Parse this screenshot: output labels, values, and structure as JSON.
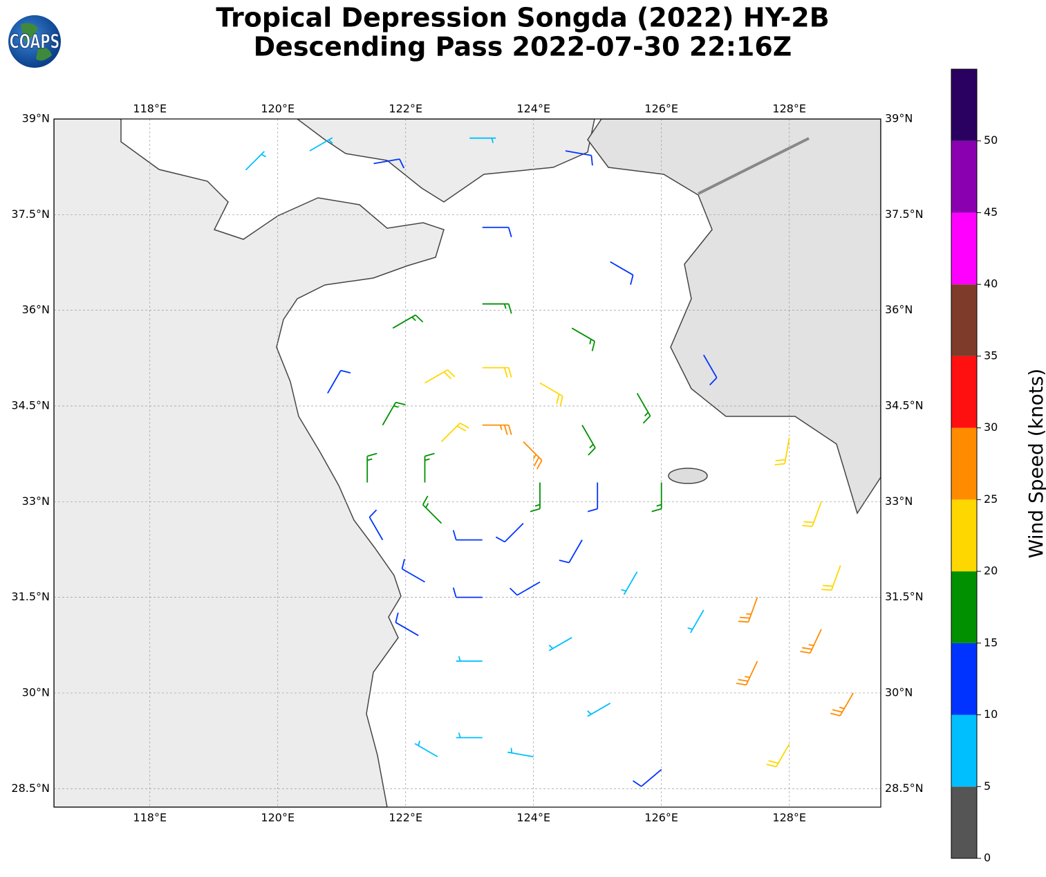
{
  "chart_data": {
    "type": "wind-barbs",
    "title": "Tropical Depression Songda (2022) HY-2B",
    "subtitle": "Descending Pass 2022-07-30 22:16Z",
    "logo": "COAPS",
    "xlim": [
      116.5,
      129.43
    ],
    "ylim": [
      28.21,
      39
    ],
    "xticks": [
      {
        "value": 118,
        "label": "118°E"
      },
      {
        "value": 120,
        "label": "120°E"
      },
      {
        "value": 122,
        "label": "122°E"
      },
      {
        "value": 124,
        "label": "124°E"
      },
      {
        "value": 126,
        "label": "126°E"
      },
      {
        "value": 128,
        "label": "128°E"
      }
    ],
    "yticks": [
      {
        "value": 28.5,
        "label": "28.5°N"
      },
      {
        "value": 30,
        "label": "30°N"
      },
      {
        "value": 31.5,
        "label": "31.5°N"
      },
      {
        "value": 33,
        "label": "33°N"
      },
      {
        "value": 34.5,
        "label": "34.5°N"
      },
      {
        "value": 36,
        "label": "36°N"
      },
      {
        "value": 37.5,
        "label": "37.5°N"
      },
      {
        "value": 39,
        "label": "39°N"
      }
    ],
    "grid": true,
    "barbs": {
      "lon": [
        124.1,
        123.84,
        123.2,
        122.56,
        122.3,
        122.56,
        123.2,
        123.84,
        125,
        124.76,
        124.1,
        123.2,
        122.3,
        121.64,
        121.4,
        121.64,
        122.3,
        123.2,
        124.1,
        124.76,
        126,
        125.62,
        124.6,
        123.2,
        121.8,
        120.78,
        122.2,
        123.2,
        124.6,
        125.62,
        125.2,
        123.2,
        126.66,
        123.2,
        125.2,
        126.66,
        120.5,
        121.5,
        123,
        124.5,
        119.5,
        127.5,
        128.5,
        129,
        128,
        128.5,
        128,
        127.5,
        128.8,
        122.5,
        124,
        126
      ],
      "lat": [
        33.3,
        33.94,
        34.2,
        33.94,
        33.3,
        32.66,
        32.4,
        32.66,
        33.3,
        34.2,
        34.86,
        35.1,
        34.86,
        34.2,
        33.3,
        32.4,
        31.74,
        31.5,
        31.74,
        32.4,
        33.3,
        34.7,
        35.72,
        36.1,
        35.72,
        34.7,
        30.9,
        30.5,
        30.87,
        31.9,
        36.76,
        37.3,
        35.3,
        29.3,
        29.84,
        31.3,
        38.5,
        38.3,
        38.7,
        38.5,
        38.2,
        31.5,
        31,
        30,
        29.2,
        33,
        34,
        30.5,
        32,
        29,
        29,
        28.8
      ],
      "speed": [
        18,
        27,
        25,
        22,
        17,
        16,
        13,
        12,
        14,
        18,
        22,
        23,
        21,
        18,
        17,
        13,
        11,
        11,
        11,
        12,
        16,
        18,
        17,
        16,
        17,
        13,
        12,
        8,
        8,
        9,
        12,
        12,
        12,
        8,
        7,
        7,
        7,
        12,
        8,
        13,
        7,
        26,
        27,
        26,
        23,
        23,
        20,
        25,
        22,
        7,
        7,
        12
      ],
      "direction": [
        180,
        135,
        90,
        45,
        0,
        315,
        270,
        225,
        180,
        150,
        120,
        90,
        60,
        30,
        0,
        330,
        300,
        270,
        240,
        210,
        180,
        150,
        120,
        90,
        60,
        30,
        300,
        270,
        240,
        210,
        120,
        90,
        150,
        270,
        240,
        210,
        60,
        80,
        90,
        100,
        45,
        200,
        205,
        210,
        210,
        200,
        190,
        205,
        200,
        300,
        280,
        230
      ]
    },
    "colorbar": {
      "label": "Wind Speed (knots)",
      "bounds": [
        0,
        5,
        10,
        15,
        20,
        25,
        30,
        35,
        40,
        45,
        50,
        55
      ],
      "colors": [
        "#555555",
        "#00bfff",
        "#0033ff",
        "#009000",
        "#ffd700",
        "#ff8c00",
        "#ff1010",
        "#7f3b2a",
        "#ff00ff",
        "#8a00b0",
        "#2a0060"
      ],
      "ticks": [
        0,
        5,
        10,
        15,
        20,
        25,
        30,
        35,
        40,
        45,
        50
      ]
    }
  }
}
